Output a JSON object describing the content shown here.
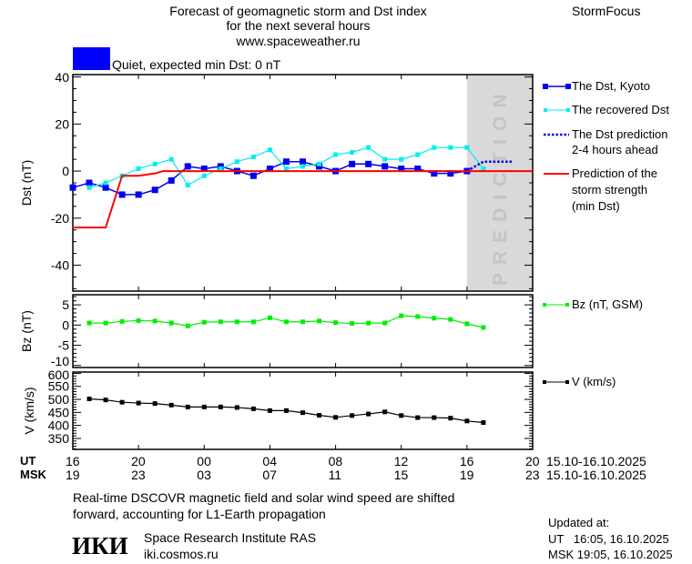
{
  "header": {
    "title_lines": [
      "Forecast of geomagnetic storm and Dst index",
      "for the next several hours",
      "www.spaceweather.ru"
    ],
    "brand": "StormFocus",
    "status_label": "Quiet, expected min Dst: 0 nT",
    "status_color": "#0000ff"
  },
  "time_axis": {
    "ut_label": "UT",
    "msk_label": "MSK",
    "ut_ticks": [
      "16",
      "20",
      "00",
      "04",
      "08",
      "12",
      "16",
      "20"
    ],
    "msk_ticks": [
      "19",
      "23",
      "03",
      "07",
      "11",
      "15",
      "19",
      "23"
    ],
    "ut_range": "15.10-16.10.2025",
    "msk_range": "15.10-16.10.2025"
  },
  "chart_data": [
    {
      "type": "line",
      "ylabel": "Dst (nT)",
      "ylim": [
        -51,
        41
      ],
      "yticks": [
        40,
        20,
        0,
        -20,
        -40
      ],
      "xlim": [
        "2025-10-15 16:00",
        "2025-10-16 20:00"
      ],
      "prediction_zone": {
        "from": "2025-10-16 16:00",
        "to": "2025-10-16 20:00",
        "label": "PREDICTION"
      },
      "series": [
        {
          "name": "The Dst, Kyoto",
          "color": "#0000ee",
          "marker": "square-large",
          "start": "2025-10-15 16:00",
          "step_hours": 1,
          "values": [
            -7,
            -5,
            -7,
            -10,
            -10,
            -8,
            -4,
            2,
            1,
            2,
            0,
            -2,
            1,
            4,
            4,
            2,
            0,
            3,
            3,
            2,
            1,
            1,
            -1,
            -1,
            0
          ]
        },
        {
          "name": "The recovered Dst",
          "color": "#00eeee",
          "marker": "square-small",
          "start": "2025-10-15 17:00",
          "step_hours": 1,
          "values": [
            -7,
            -5,
            -2,
            1,
            3,
            5,
            -6,
            -2,
            1,
            4,
            6,
            9,
            1,
            2,
            3,
            7,
            8,
            10,
            5,
            5,
            7,
            10,
            10,
            10,
            1
          ]
        },
        {
          "name": "The Dst prediction 2-4 hours ahead",
          "color": "#0000ee",
          "style": "dotted",
          "points": [
            [
              "2025-10-16 16:00",
              0
            ],
            [
              "2025-10-16 17:00",
              4
            ],
            [
              "2025-10-16 18:45",
              4
            ]
          ]
        },
        {
          "name": "Prediction of the storm strength (min Dst)",
          "color": "#ff0000",
          "style": "solid",
          "points": [
            [
              "2025-10-15 16:00",
              -24
            ],
            [
              "2025-10-15 18:00",
              -24
            ],
            [
              "2025-10-15 19:00",
              -2
            ],
            [
              "2025-10-15 20:00",
              -2
            ],
            [
              "2025-10-15 21:00",
              -1
            ],
            [
              "2025-10-15 21:30",
              0
            ],
            [
              "2025-10-16 20:00",
              0
            ]
          ]
        }
      ]
    },
    {
      "type": "line",
      "ylabel": "Bz (nT)",
      "ylim": [
        -10.5,
        7.5
      ],
      "yticks": [
        5,
        0,
        -5,
        -10
      ],
      "series": [
        {
          "name": "Bz (nT, GSM)",
          "color": "#00ee00",
          "marker": "square-small",
          "start": "2025-10-15 17:00",
          "step_hours": 1,
          "values": [
            0.5,
            0.5,
            0.9,
            1.1,
            1.0,
            0.5,
            -0.2,
            0.7,
            0.8,
            0.8,
            0.8,
            1.8,
            0.8,
            0.8,
            1.0,
            0.6,
            0.4,
            0.5,
            0.5,
            2.3,
            2.1,
            1.7,
            1.4,
            0.3,
            -0.6
          ]
        }
      ]
    },
    {
      "type": "line",
      "ylabel": "V (km/s)",
      "ylim": [
        308,
        605
      ],
      "yticks": [
        600,
        550,
        500,
        450,
        400,
        350
      ],
      "series": [
        {
          "name": "V (km/s)",
          "color": "#000000",
          "marker": "square-small",
          "start": "2025-10-15 17:00",
          "step_hours": 1,
          "values": [
            502,
            498,
            489,
            486,
            484,
            478,
            471,
            471,
            471,
            469,
            464,
            457,
            457,
            449,
            439,
            431,
            438,
            444,
            452,
            438,
            430,
            430,
            428,
            417,
            411
          ]
        }
      ]
    }
  ],
  "legend": {
    "dst_kyoto": "The Dst, Kyoto",
    "recovered": "The recovered Dst",
    "prediction_1": "The Dst prediction",
    "prediction_2": "2-4 hours ahead",
    "strength_1": "Prediction of the",
    "strength_2": "storm strength",
    "strength_3": "(min Dst)",
    "bz": "Bz (nT, GSM)",
    "v": "V (km/s)"
  },
  "footer": {
    "note_1": "Real-time DSCOVR magnetic field and solar wind speed are shifted",
    "note_2": "forward, accounting for L1-Earth propagation",
    "logo_text": "ИКИ",
    "institute": "Space Research Institute RAS",
    "site": "iki.cosmos.ru",
    "updated_label": "Updated at:",
    "updated_ut": "UT   16:05, 16.10.2025",
    "updated_msk": "MSK 19:05, 16.10.2025"
  }
}
